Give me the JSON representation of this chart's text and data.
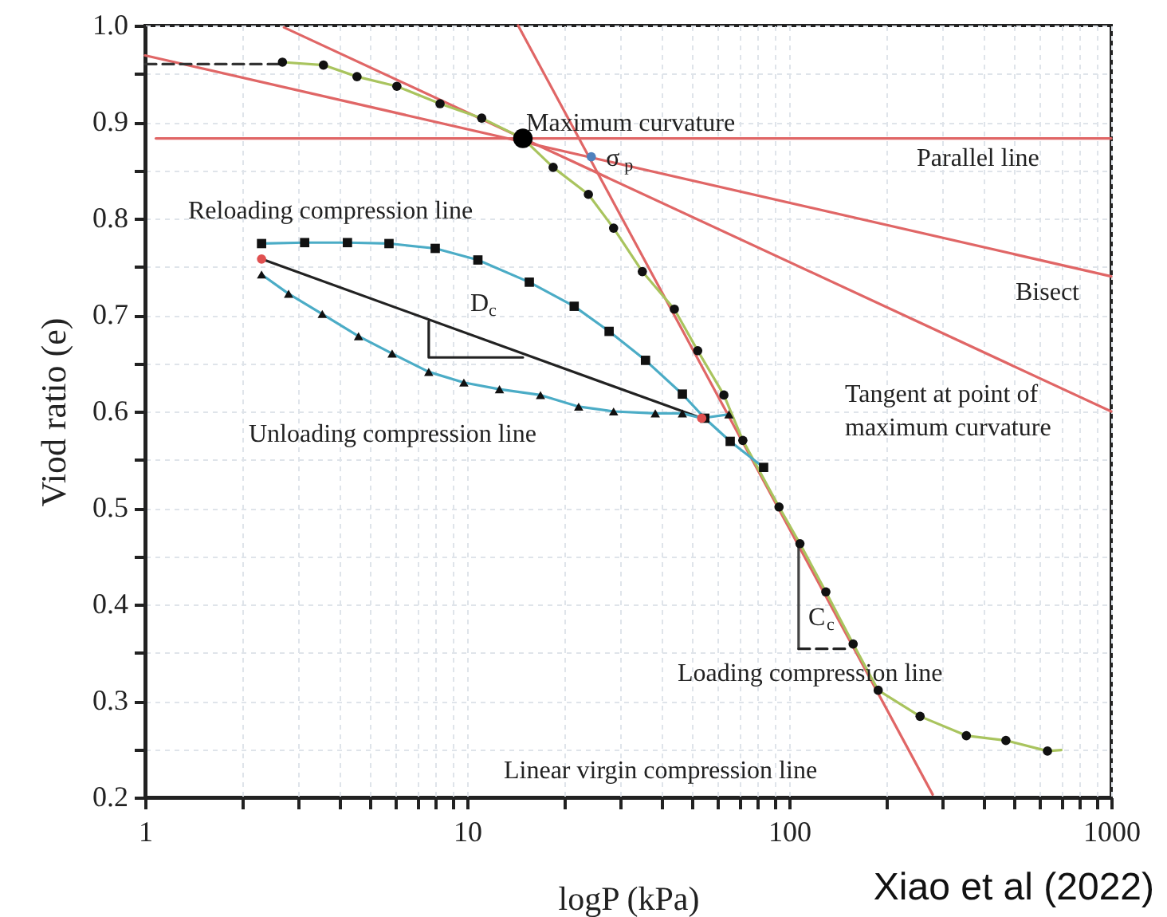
{
  "chart_data": {
    "type": "line",
    "xlabel": "logP (kPa)",
    "ylabel": "Viod ratio (e)",
    "log": "x",
    "grid": true,
    "xlim": [
      1,
      1000
    ],
    "ylim": [
      0.2,
      1.0
    ],
    "xticks": [
      1,
      {
        "value": 2,
        "label": null
      },
      {
        "value": 3,
        "label": null
      },
      {
        "value": 4,
        "label": null
      },
      {
        "value": 5,
        "label": null
      },
      {
        "value": 6,
        "label": null
      },
      {
        "value": 7,
        "label": null
      },
      {
        "value": 8,
        "label": null
      },
      {
        "value": 9,
        "label": null
      },
      10,
      {
        "value": 20,
        "label": null
      },
      {
        "value": 30,
        "label": null
      },
      {
        "value": 40,
        "label": null
      },
      {
        "value": 50,
        "label": null
      },
      {
        "value": 60,
        "label": null
      },
      {
        "value": 70,
        "label": null
      },
      {
        "value": 80,
        "label": null
      },
      {
        "value": 90,
        "label": null
      },
      100,
      {
        "value": 200,
        "label": null
      },
      {
        "value": 300,
        "label": null
      },
      {
        "value": 400,
        "label": null
      },
      {
        "value": 500,
        "label": null
      },
      {
        "value": 600,
        "label": null
      },
      {
        "value": 700,
        "label": null
      },
      {
        "value": 800,
        "label": null
      },
      {
        "value": 900,
        "label": null
      },
      1000
    ],
    "yticks": [
      {
        "value": 0.2,
        "label": "0.2"
      },
      {
        "value": 0.25,
        "label": null
      },
      {
        "value": 0.3,
        "label": "0.3"
      },
      {
        "value": 0.35,
        "label": null
      },
      {
        "value": 0.4,
        "label": "0.4"
      },
      {
        "value": 0.45,
        "label": null
      },
      {
        "value": 0.5,
        "label": "0.5"
      },
      {
        "value": 0.55,
        "label": null
      },
      {
        "value": 0.6,
        "label": "0.6"
      },
      {
        "value": 0.65,
        "label": null
      },
      {
        "value": 0.7,
        "label": "0.7"
      },
      {
        "value": 0.75,
        "label": null
      },
      {
        "value": 0.8,
        "label": "0.8"
      },
      {
        "value": 0.85,
        "label": null
      },
      {
        "value": 0.9,
        "label": "0.9"
      },
      {
        "value": 0.95,
        "label": null
      },
      {
        "value": 1.0,
        "label": "1.0"
      }
    ],
    "series": [
      {
        "type": "line",
        "color": "#e06666",
        "x": [
          1.08,
          1000
        ],
        "values": [
          0.883,
          0.883
        ]
      },
      {
        "type": "line",
        "color": "#e06666",
        "x": [
          1,
          1000
        ],
        "values": [
          0.969,
          0.74
        ]
      },
      {
        "type": "line",
        "color": "#e06666",
        "x": [
          2.7,
          1000
        ],
        "values": [
          0.998,
          0.6
        ]
      },
      {
        "type": "line",
        "color": "#e06666",
        "x": [
          14.4,
          279
        ],
        "values": [
          1.0,
          0.203
        ]
      },
      {
        "type": "line",
        "color": "#333333",
        "line_style": "dashed",
        "x": [
          1,
          2.67
        ],
        "values": [
          0.96,
          0.96
        ]
      },
      {
        "type": "line",
        "color": "#222222",
        "x": [
          2.3,
          53.5
        ],
        "values": [
          0.758,
          0.593
        ]
      },
      {
        "type": "line",
        "color": "#222222",
        "x": [
          7.6,
          7.6,
          14.9
        ],
        "values": [
          0.693,
          0.656,
          0.656
        ]
      },
      {
        "type": "line",
        "color": "#444444",
        "x": [
          107,
          107
        ],
        "values": [
          0.459,
          0.354
        ]
      },
      {
        "type": "line",
        "color": "#222222",
        "line_style": "dashed",
        "x": [
          107,
          155
        ],
        "values": [
          0.354,
          0.354
        ]
      },
      {
        "type": "line",
        "color": "#a9c45e",
        "x": [
          2.67,
          3.58,
          4.55,
          6.05,
          8.24,
          11.1,
          14.9,
          18.5,
          23.8,
          28.5,
          35,
          44,
          52,
          62.7,
          71.8,
          93,
          108,
          130,
          158,
          189,
          255,
          355,
          471,
          634,
          700
        ],
        "values": [
          0.962,
          0.959,
          0.947,
          0.937,
          0.919,
          0.904,
          0.883,
          0.853,
          0.825,
          0.79,
          0.745,
          0.706,
          0.663,
          0.617,
          0.57,
          0.501,
          0.463,
          0.413,
          0.359,
          0.311,
          0.284,
          0.264,
          0.259,
          0.248,
          0.249
        ]
      },
      {
        "type": "line",
        "color": "#4bacc6",
        "x": [
          2.3,
          3.13,
          4.25,
          5.72,
          7.96,
          10.8,
          15.6,
          21.5,
          27.6,
          35.8,
          46.6,
          54.7,
          65.6,
          83.3
        ],
        "values": [
          0.774,
          0.775,
          0.775,
          0.774,
          0.769,
          0.757,
          0.734,
          0.709,
          0.683,
          0.653,
          0.618,
          0.593,
          0.569,
          0.542
        ]
      },
      {
        "type": "line",
        "color": "#4bacc6",
        "x": [
          2.3,
          2.79,
          3.55,
          4.6,
          5.85,
          7.6,
          9.77,
          12.6,
          16.9,
          22.2,
          28.5,
          38.4,
          46.6,
          53.5,
          65
        ],
        "values": [
          0.742,
          0.722,
          0.701,
          0.678,
          0.66,
          0.641,
          0.63,
          0.623,
          0.617,
          0.605,
          0.6,
          0.598,
          0.598,
          0.593,
          0.597
        ]
      },
      {
        "type": "scatter",
        "color": "#111111",
        "marker": "circle",
        "x": [
          2.67,
          3.58,
          4.55,
          6.05,
          8.24,
          11.1,
          18.5,
          23.8,
          28.5,
          35,
          44,
          52,
          62.7,
          71.8,
          93,
          108,
          130,
          158,
          189,
          255,
          355,
          471,
          634
        ],
        "values": [
          0.962,
          0.959,
          0.947,
          0.937,
          0.919,
          0.904,
          0.853,
          0.825,
          0.79,
          0.745,
          0.706,
          0.663,
          0.617,
          0.57,
          0.501,
          0.463,
          0.413,
          0.359,
          0.311,
          0.284,
          0.264,
          0.259,
          0.248
        ]
      },
      {
        "type": "scatter",
        "color": "#111111",
        "marker": "square",
        "x": [
          2.3,
          3.13,
          4.25,
          5.72,
          7.96,
          10.8,
          15.6,
          21.5,
          27.6,
          35.8,
          46.6,
          54.7,
          65.6,
          83.3
        ],
        "values": [
          0.774,
          0.775,
          0.775,
          0.774,
          0.769,
          0.757,
          0.734,
          0.709,
          0.683,
          0.653,
          0.618,
          0.593,
          0.569,
          0.542
        ]
      },
      {
        "type": "scatter",
        "color": "#111111",
        "marker": "triangle",
        "x": [
          2.3,
          2.79,
          3.55,
          4.6,
          5.85,
          7.6,
          9.77,
          12.6,
          16.9,
          22.2,
          28.5,
          38.4,
          46.6,
          65
        ],
        "values": [
          0.742,
          0.722,
          0.701,
          0.678,
          0.66,
          0.641,
          0.63,
          0.623,
          0.617,
          0.605,
          0.6,
          0.598,
          0.598,
          0.597
        ]
      },
      {
        "type": "scatter",
        "color": "#e05050",
        "marker": "circle",
        "x": [
          2.3,
          53.5
        ],
        "values": [
          0.758,
          0.593
        ]
      },
      {
        "type": "scatter",
        "color": "#000000",
        "marker": "circle",
        "x": [
          14.9
        ],
        "values": [
          0.883
        ]
      },
      {
        "type": "scatter",
        "color": "#4f81bd",
        "marker": "circle",
        "x": [
          24.3
        ],
        "values": [
          0.864
        ]
      }
    ],
    "annotations": [
      "Maximum curvature",
      {
        "text": "σ$_{p}$",
        "x": 27,
        "y": 0.863
      },
      "Parallel line",
      "Reloading compression line",
      "Bisect",
      "D$_{c}$",
      "Tangent at point of maximum curvature",
      "Unloading compression line",
      "C$_{c}$",
      "Loading compression line",
      "Linear virgin compression line",
      "Xiao et al (2022)"
    ]
  }
}
